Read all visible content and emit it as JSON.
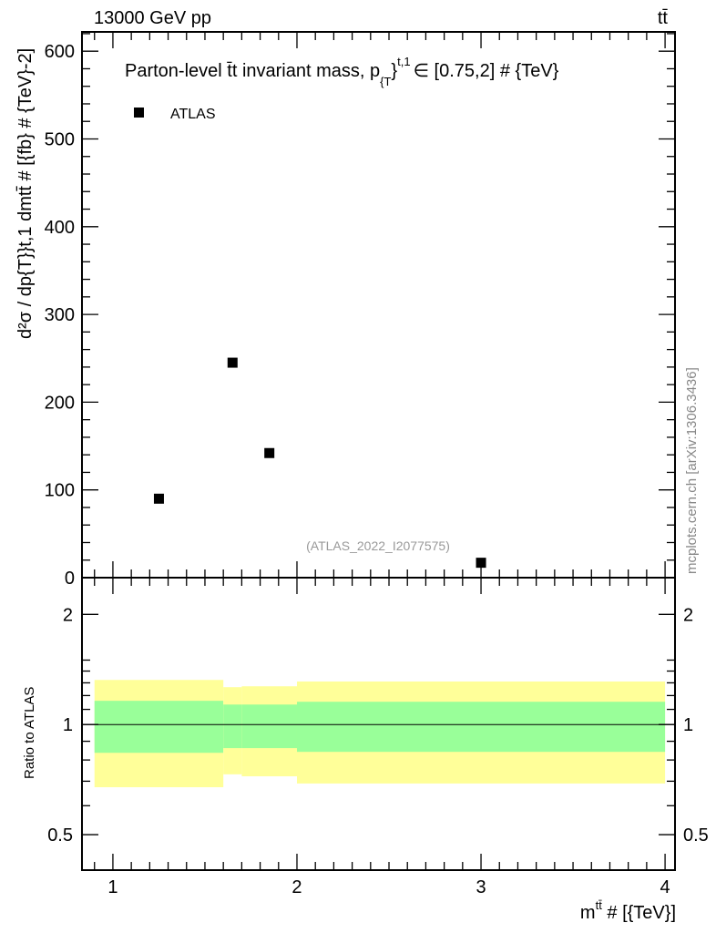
{
  "header": {
    "energy": "13000 GeV pp",
    "process": "tt̄"
  },
  "side_label": "mcplots.cern.ch [arXiv:1306.3436]",
  "chart_data": [
    {
      "type": "scatter",
      "title": "Parton-level t̄t invariant mass, p_{T}^{t,1} ∈ [0.75,2] # {TeV}",
      "title_main": "Parton-level t̄t invariant mass, p",
      "title_sub": "{T",
      "title_sup": "}",
      "title_sup2": "t,1",
      "title_tail": "∈ [0.75,2] # {TeV}",
      "ylabel": "d²σ / dp_{T}^{t,1} dm^{tt̄} # [{fb} # {TeV}^-2]",
      "ylabel_text": "d²σ / dp{T}}t,1 dmtt̄ # [{fb} # {TeV}-2]",
      "xlim": [
        0.832,
        4.054
      ],
      "ylim": [
        0,
        622
      ],
      "yticks": [
        0,
        100,
        200,
        300,
        400,
        500,
        600
      ],
      "ytick_labels": [
        "0",
        "100",
        "200",
        "300",
        "400",
        "500",
        "600"
      ],
      "legend": {
        "label": "ATLAS",
        "placement": "top-left"
      },
      "annotation": "(ATLAS_2022_I2077575)",
      "series": [
        {
          "name": "ATLAS",
          "x": [
            1.25,
            1.65,
            1.85,
            3.0
          ],
          "y": [
            90,
            245,
            142,
            17
          ]
        }
      ]
    },
    {
      "type": "area",
      "ylabel": "Ratio to ATLAS",
      "xlabel": "m^{tt̄} # [{TeV}]",
      "xlabel_main": "m",
      "xlabel_sup": "tt̄",
      "xlabel_tail": " # [{TeV}]",
      "yscale": "log",
      "xlim": [
        0.832,
        4.054
      ],
      "ylim": [
        0.4,
        2.52
      ],
      "xticks": [
        1,
        2,
        3,
        4
      ],
      "xtick_labels": [
        "1",
        "2",
        "3",
        "4"
      ],
      "yticks": [
        0.5,
        1,
        2
      ],
      "ytick_labels": [
        "0.5",
        "1",
        "2"
      ],
      "bins": [
        [
          0.9,
          1.6
        ],
        [
          1.6,
          1.7
        ],
        [
          1.7,
          2.0
        ],
        [
          2.0,
          4.0
        ]
      ],
      "green_band": {
        "low": [
          0.837,
          0.862,
          0.862,
          0.842
        ],
        "high": [
          1.161,
          1.134,
          1.134,
          1.154
        ]
      },
      "yellow_band": {
        "low": [
          0.674,
          0.731,
          0.722,
          0.69
        ],
        "high": [
          1.324,
          1.265,
          1.272,
          1.311
        ]
      },
      "colors": {
        "green": "#99ff99",
        "yellow": "#ffff99"
      }
    }
  ]
}
